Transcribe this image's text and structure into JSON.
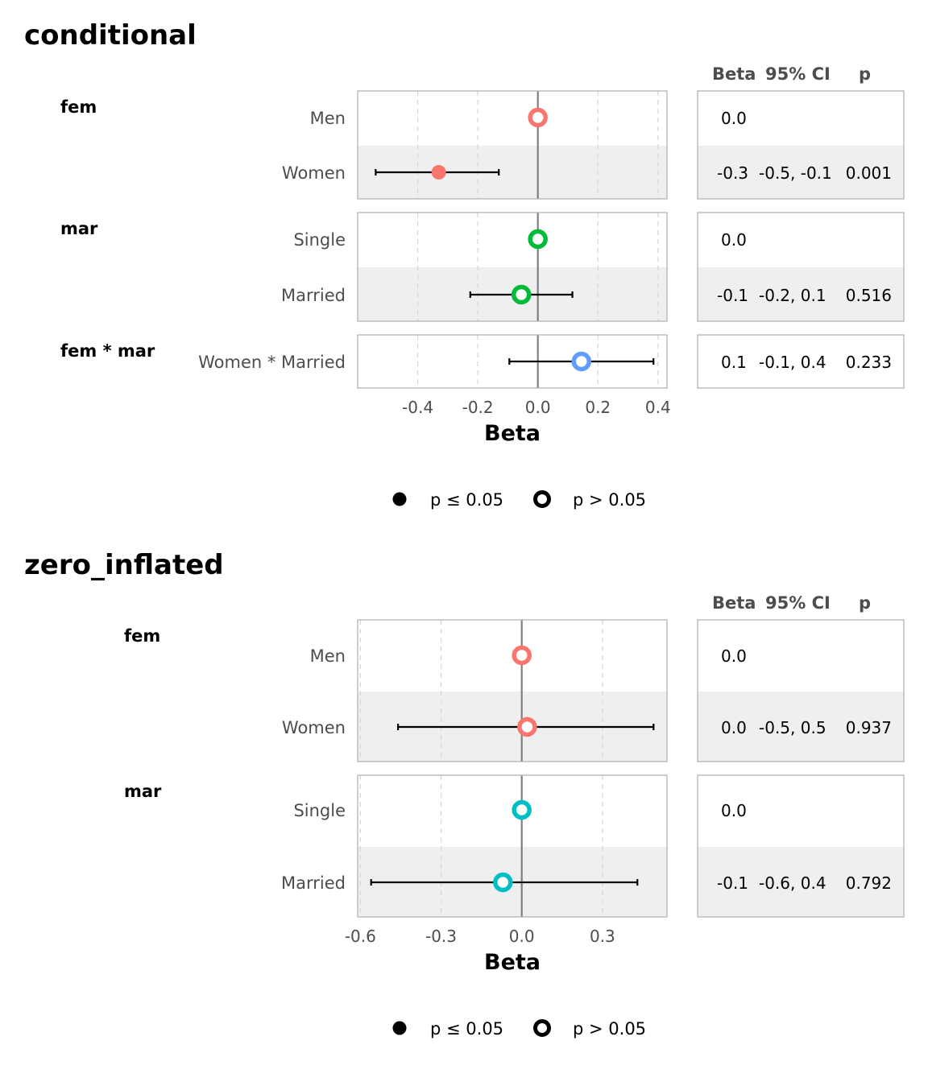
{
  "chart_data": [
    {
      "type": "forest",
      "title": "conditional",
      "xlabel": "Beta",
      "xlim": [
        -0.6,
        0.43
      ],
      "xticks": [
        -0.4,
        -0.2,
        0.0,
        0.2,
        0.4
      ],
      "xtick_labels": [
        "-0.4",
        "-0.2",
        "0.0",
        "0.2",
        "0.4"
      ],
      "grid": "vertical dashed",
      "table_headers": [
        "Beta",
        "95% CI",
        "p"
      ],
      "groups": [
        {
          "label": "fem",
          "rows": [
            {
              "label": "Men",
              "beta": 0.0,
              "low": null,
              "high": null,
              "significant": false,
              "color": "#F8766D",
              "beta_text": "0.0",
              "ci_text": "",
              "p_text": ""
            },
            {
              "label": "Women",
              "beta": -0.33,
              "low": -0.54,
              "high": -0.13,
              "significant": true,
              "color": "#F8766D",
              "beta_text": "-0.3",
              "ci_text": "-0.5, -0.1",
              "p_text": "0.001"
            }
          ]
        },
        {
          "label": "mar",
          "rows": [
            {
              "label": "Single",
              "beta": 0.0,
              "low": null,
              "high": null,
              "significant": false,
              "color": "#00BA38",
              "beta_text": "0.0",
              "ci_text": "",
              "p_text": ""
            },
            {
              "label": "Married",
              "beta": -0.055,
              "low": -0.225,
              "high": 0.115,
              "significant": false,
              "color": "#00BA38",
              "beta_text": "-0.1",
              "ci_text": "-0.2, 0.1",
              "p_text": "0.516"
            }
          ]
        },
        {
          "label": "fem * mar",
          "rows": [
            {
              "label": "Women * Married",
              "beta": 0.145,
              "low": -0.095,
              "high": 0.385,
              "significant": false,
              "color": "#619CFF",
              "beta_text": "0.1",
              "ci_text": "-0.1, 0.4",
              "p_text": "0.233"
            }
          ]
        }
      ],
      "legend": {
        "placement": "bottom",
        "entries": [
          "p ≤ 0.05",
          "p > 0.05"
        ]
      }
    },
    {
      "type": "forest",
      "title": "zero_inflated",
      "xlabel": "Beta",
      "xlim": [
        -0.61,
        0.54
      ],
      "xticks": [
        -0.6,
        -0.3,
        0.0,
        0.3
      ],
      "xtick_labels": [
        "-0.6",
        "-0.3",
        "0.0",
        "0.3"
      ],
      "grid": "vertical dashed",
      "table_headers": [
        "Beta",
        "95% CI",
        "p"
      ],
      "groups": [
        {
          "label": "fem",
          "rows": [
            {
              "label": "Men",
              "beta": 0.0,
              "low": null,
              "high": null,
              "significant": false,
              "color": "#F8766D",
              "beta_text": "0.0",
              "ci_text": "",
              "p_text": ""
            },
            {
              "label": "Women",
              "beta": 0.02,
              "low": -0.46,
              "high": 0.49,
              "significant": false,
              "color": "#F8766D",
              "beta_text": "0.0",
              "ci_text": "-0.5, 0.5",
              "p_text": "0.937"
            }
          ]
        },
        {
          "label": "mar",
          "rows": [
            {
              "label": "Single",
              "beta": 0.0,
              "low": null,
              "high": null,
              "significant": false,
              "color": "#00BFC4",
              "beta_text": "0.0",
              "ci_text": "",
              "p_text": ""
            },
            {
              "label": "Married",
              "beta": -0.07,
              "low": -0.56,
              "high": 0.43,
              "significant": false,
              "color": "#00BFC4",
              "beta_text": "-0.1",
              "ci_text": "-0.6, 0.4",
              "p_text": "0.792"
            }
          ]
        }
      ],
      "legend": {
        "placement": "bottom",
        "entries": [
          "p ≤ 0.05",
          "p > 0.05"
        ]
      }
    }
  ]
}
